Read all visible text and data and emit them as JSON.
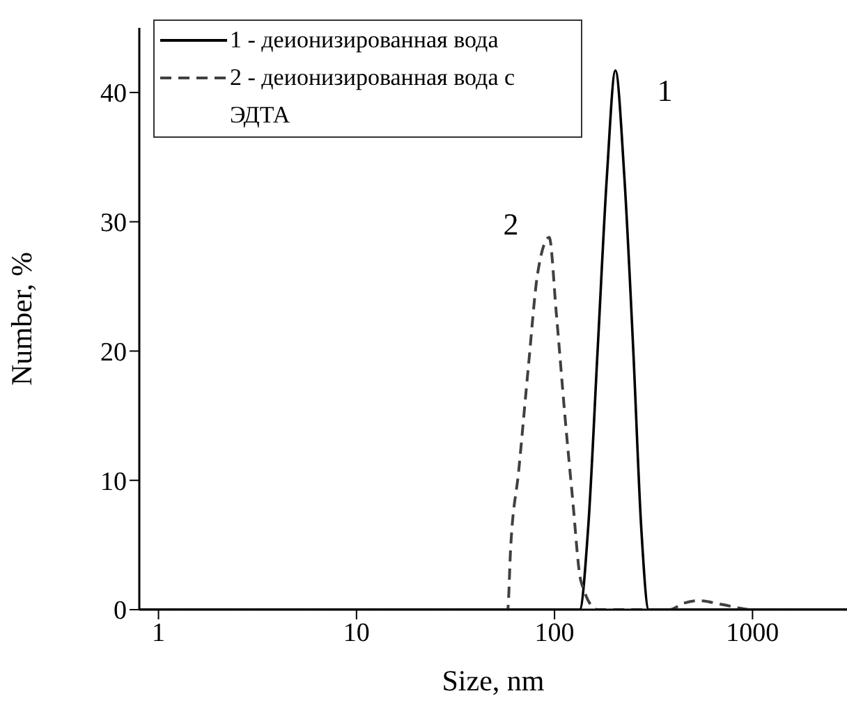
{
  "chart_data": {
    "type": "line",
    "xlabel": "Size, nm",
    "ylabel": "Number, %",
    "log": "x",
    "xlim": [
      0.8,
      3000
    ],
    "xticks": [
      1,
      10,
      100,
      1000
    ],
    "ylim": [
      0,
      45
    ],
    "yticks": [
      0,
      10,
      20,
      30,
      40
    ],
    "legend": "top left",
    "grid": false,
    "marker": "none",
    "annotations": [
      "1",
      "2"
    ],
    "series": [
      {
        "name": "1 - деионизированная вода",
        "color": "#000000",
        "line_style": "solid",
        "x": [
          0.8,
          134,
          148,
          165,
          184,
          203,
          225,
          250,
          274,
          299,
          3000
        ],
        "values": [
          0,
          0,
          6.4,
          20,
          33.6,
          41.7,
          33.6,
          20,
          6.4,
          0,
          0
        ]
      },
      {
        "name": "2 - деионизированная вода с ЭДТА",
        "color": "#404040",
        "line_style": "dashed",
        "x": [
          0.8,
          58,
          60,
          66,
          74,
          82,
          94,
          102,
          113,
          123,
          136,
          165,
          380,
          450,
          534,
          700,
          1000,
          3000
        ],
        "values": [
          0,
          0,
          4.7,
          10.8,
          19,
          25.9,
          28.8,
          23,
          14.9,
          8.8,
          2.2,
          0,
          0,
          0.5,
          0.7,
          0.4,
          0,
          0
        ]
      }
    ]
  }
}
